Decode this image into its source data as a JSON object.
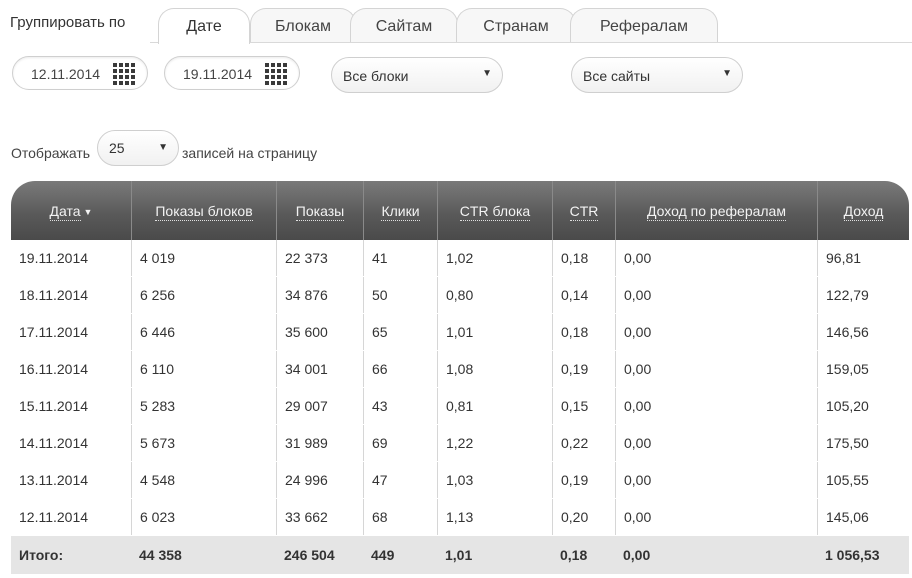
{
  "group_by": {
    "label": "Группировать по",
    "tabs": [
      {
        "label": "Дате",
        "active": true
      },
      {
        "label": "Блокам",
        "active": false
      },
      {
        "label": "Сайтам",
        "active": false
      },
      {
        "label": "Странам",
        "active": false
      },
      {
        "label": "Рефералам",
        "active": false
      }
    ]
  },
  "filters": {
    "date_from": "12.11.2014",
    "date_to": "19.11.2014",
    "blocks_select": "Все блоки",
    "sites_select": "Все сайты",
    "calendar_icon": "calendar-icon",
    "dropdown_icon": "triangle-down"
  },
  "pagination": {
    "prefix": "Отображать",
    "per_page": "25",
    "suffix": "записей на страницу"
  },
  "table": {
    "columns": [
      "Дата",
      "Показы блоков",
      "Показы",
      "Клики",
      "CTR блока",
      "CTR",
      "Доход по рефералам",
      "Доход"
    ],
    "sort_indicator": "▼",
    "rows": [
      [
        "19.11.2014",
        "4 019",
        "22 373",
        "41",
        "1,02",
        "0,18",
        "0,00",
        "96,81"
      ],
      [
        "18.11.2014",
        "6 256",
        "34 876",
        "50",
        "0,80",
        "0,14",
        "0,00",
        "122,79"
      ],
      [
        "17.11.2014",
        "6 446",
        "35 600",
        "65",
        "1,01",
        "0,18",
        "0,00",
        "146,56"
      ],
      [
        "16.11.2014",
        "6 110",
        "34 001",
        "66",
        "1,08",
        "0,19",
        "0,00",
        "159,05"
      ],
      [
        "15.11.2014",
        "5 283",
        "29 007",
        "43",
        "0,81",
        "0,15",
        "0,00",
        "105,20"
      ],
      [
        "14.11.2014",
        "5 673",
        "31 989",
        "69",
        "1,22",
        "0,22",
        "0,00",
        "175,50"
      ],
      [
        "13.11.2014",
        "4 548",
        "24 996",
        "47",
        "1,03",
        "0,19",
        "0,00",
        "105,55"
      ],
      [
        "12.11.2014",
        "6 023",
        "33 662",
        "68",
        "1,13",
        "0,20",
        "0,00",
        "145,06"
      ]
    ],
    "total": [
      "Итого:",
      "44 358",
      "246 504",
      "449",
      "1,01",
      "0,18",
      "0,00",
      "1 056,53"
    ],
    "header_color": "#5a5a5a",
    "total_row_color": "#e5e5e5"
  }
}
